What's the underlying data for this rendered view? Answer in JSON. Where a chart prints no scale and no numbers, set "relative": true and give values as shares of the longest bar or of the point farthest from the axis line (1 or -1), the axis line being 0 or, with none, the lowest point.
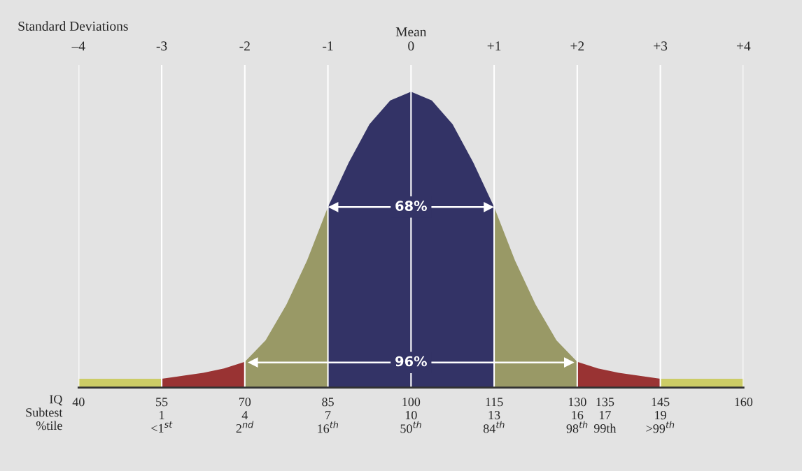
{
  "chart_data": {
    "type": "area",
    "relative": true,
    "x2label": "Standard Deviations",
    "x2lim": [
      -4,
      4
    ],
    "x2ticks": [
      {
        "value": -4,
        "label": "–4"
      },
      {
        "value": -3,
        "label": "-3"
      },
      {
        "value": -2,
        "label": "-2"
      },
      {
        "value": -1,
        "label": "-1"
      },
      {
        "value": 0,
        "label": "Mean\n0"
      },
      {
        "value": 1,
        "label": "+1"
      },
      {
        "value": 2,
        "label": "+2"
      },
      {
        "value": 3,
        "label": "+3"
      },
      {
        "value": 4,
        "label": "+4"
      }
    ],
    "xlim": [
      40,
      160
    ],
    "xticks": [
      40,
      {
        "value": 55,
        "label": "55\n1\n<1$^{st}$"
      },
      {
        "value": 70,
        "label": "70\n4\n2$^{nd}$"
      },
      {
        "value": 85,
        "label": "85\n7\n16$^{th}$"
      },
      {
        "value": 100,
        "label": "100\n10\n50$^{th}$"
      },
      {
        "value": 115,
        "label": "115\n13\n84$^{th}$"
      },
      {
        "value": 130,
        "label": "130\n16\n98$^{th}$"
      },
      {
        "value": 135,
        "label": "135\n17\n99th"
      },
      {
        "value": 145,
        "label": "145\n19\n>99$^{th}$"
      },
      160
    ],
    "grid": "x",
    "series": [
      {
        "color": "#cccc66",
        "x": [
          40,
          55
        ],
        "values": [
          0.03,
          0.03
        ]
      },
      {
        "color": "#993333",
        "x": [
          55,
          58.75,
          62.5,
          66.25,
          70
        ],
        "values": [
          0.03,
          0.04,
          0.05,
          0.065,
          0.087
        ]
      },
      {
        "color": "#999966",
        "x": [
          70,
          73.75,
          77.5,
          81.25,
          85
        ],
        "values": [
          0.087,
          0.16,
          0.28,
          0.43,
          0.61
        ]
      },
      {
        "color": "#333366",
        "x": [
          85,
          88.75,
          92.5,
          96.25,
          100,
          103.75,
          107.5,
          111.25,
          115
        ],
        "values": [
          0.61,
          0.76,
          0.89,
          0.97,
          1,
          0.97,
          0.89,
          0.76,
          0.61
        ]
      },
      {
        "color": "#999966",
        "x": [
          115,
          118.75,
          122.5,
          126.25,
          130
        ],
        "values": [
          0.61,
          0.43,
          0.28,
          0.16,
          0.087
        ]
      },
      {
        "color": "#993333",
        "x": [
          130,
          133.75,
          137.5,
          141.25,
          145
        ],
        "values": [
          0.087,
          0.065,
          0.05,
          0.04,
          0.03
        ]
      },
      {
        "color": "#cccc66",
        "x": [
          145,
          160
        ],
        "values": [
          0.03,
          0.03
        ]
      },
      {
        "type": "line",
        "marker": "triangle",
        "color": "#ffffff",
        "x": [
          86,
          114
        ],
        "values": [
          0.61,
          0.61
        ]
      },
      {
        "type": "line",
        "marker": "triangle",
        "color": "#ffffff",
        "x": [
          71.5,
          128.5
        ],
        "values": [
          0.085,
          0.085
        ]
      }
    ],
    "annotations": [
      {
        "text": "68%",
        "x": 100,
        "y": 0.61
      },
      {
        "text": "96%",
        "x": 100,
        "y": 0.085
      },
      "IQ\nSubtest\n%tile"
    ]
  }
}
